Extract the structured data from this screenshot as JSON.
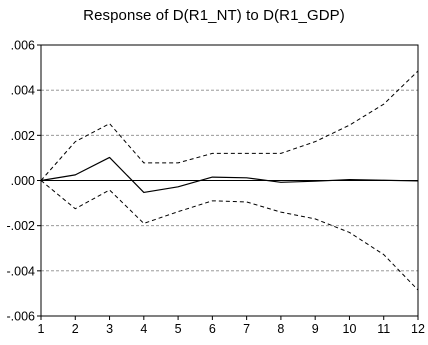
{
  "chart_data": {
    "type": "line",
    "title": "Response of D(R1_NT) to D(R1_GDP)",
    "xlabel": "",
    "ylabel": "",
    "x": [
      1,
      2,
      3,
      4,
      5,
      6,
      7,
      8,
      9,
      10,
      11,
      12
    ],
    "xlim": [
      1,
      12
    ],
    "ylim": [
      -0.006,
      0.006
    ],
    "y_ticks": [
      0.006,
      0.004,
      0.002,
      0.0,
      -0.002,
      -0.004,
      -0.006
    ],
    "y_tick_labels": [
      ".006",
      ".004",
      ".002",
      ".000",
      "-.002",
      "-.004",
      "-.006"
    ],
    "x_tick_labels": [
      "1",
      "2",
      "3",
      "4",
      "5",
      "6",
      "7",
      "8",
      "9",
      "10",
      "11",
      "12"
    ],
    "grid": "horizontal dashed",
    "zero_line": true,
    "legend": "none",
    "series": [
      {
        "style": "solid",
        "color": "#000000",
        "values": [
          0.0,
          0.00025,
          0.00102,
          -0.00053,
          -0.00028,
          0.00015,
          0.00012,
          -8e-05,
          -3e-05,
          4e-05,
          1e-05,
          -2e-05
        ]
      },
      {
        "style": "dashed",
        "color": "#000000",
        "values": [
          0.0,
          0.00172,
          0.00252,
          0.00078,
          0.00078,
          0.0012,
          0.0012,
          0.0012,
          0.00172,
          0.00245,
          0.00338,
          0.00485
        ]
      },
      {
        "style": "dashed",
        "color": "#000000",
        "values": [
          0.0,
          -0.00125,
          -0.00042,
          -0.0019,
          -0.00138,
          -0.0009,
          -0.00095,
          -0.0014,
          -0.0017,
          -0.0023,
          -0.00328,
          -0.00485
        ]
      }
    ]
  }
}
